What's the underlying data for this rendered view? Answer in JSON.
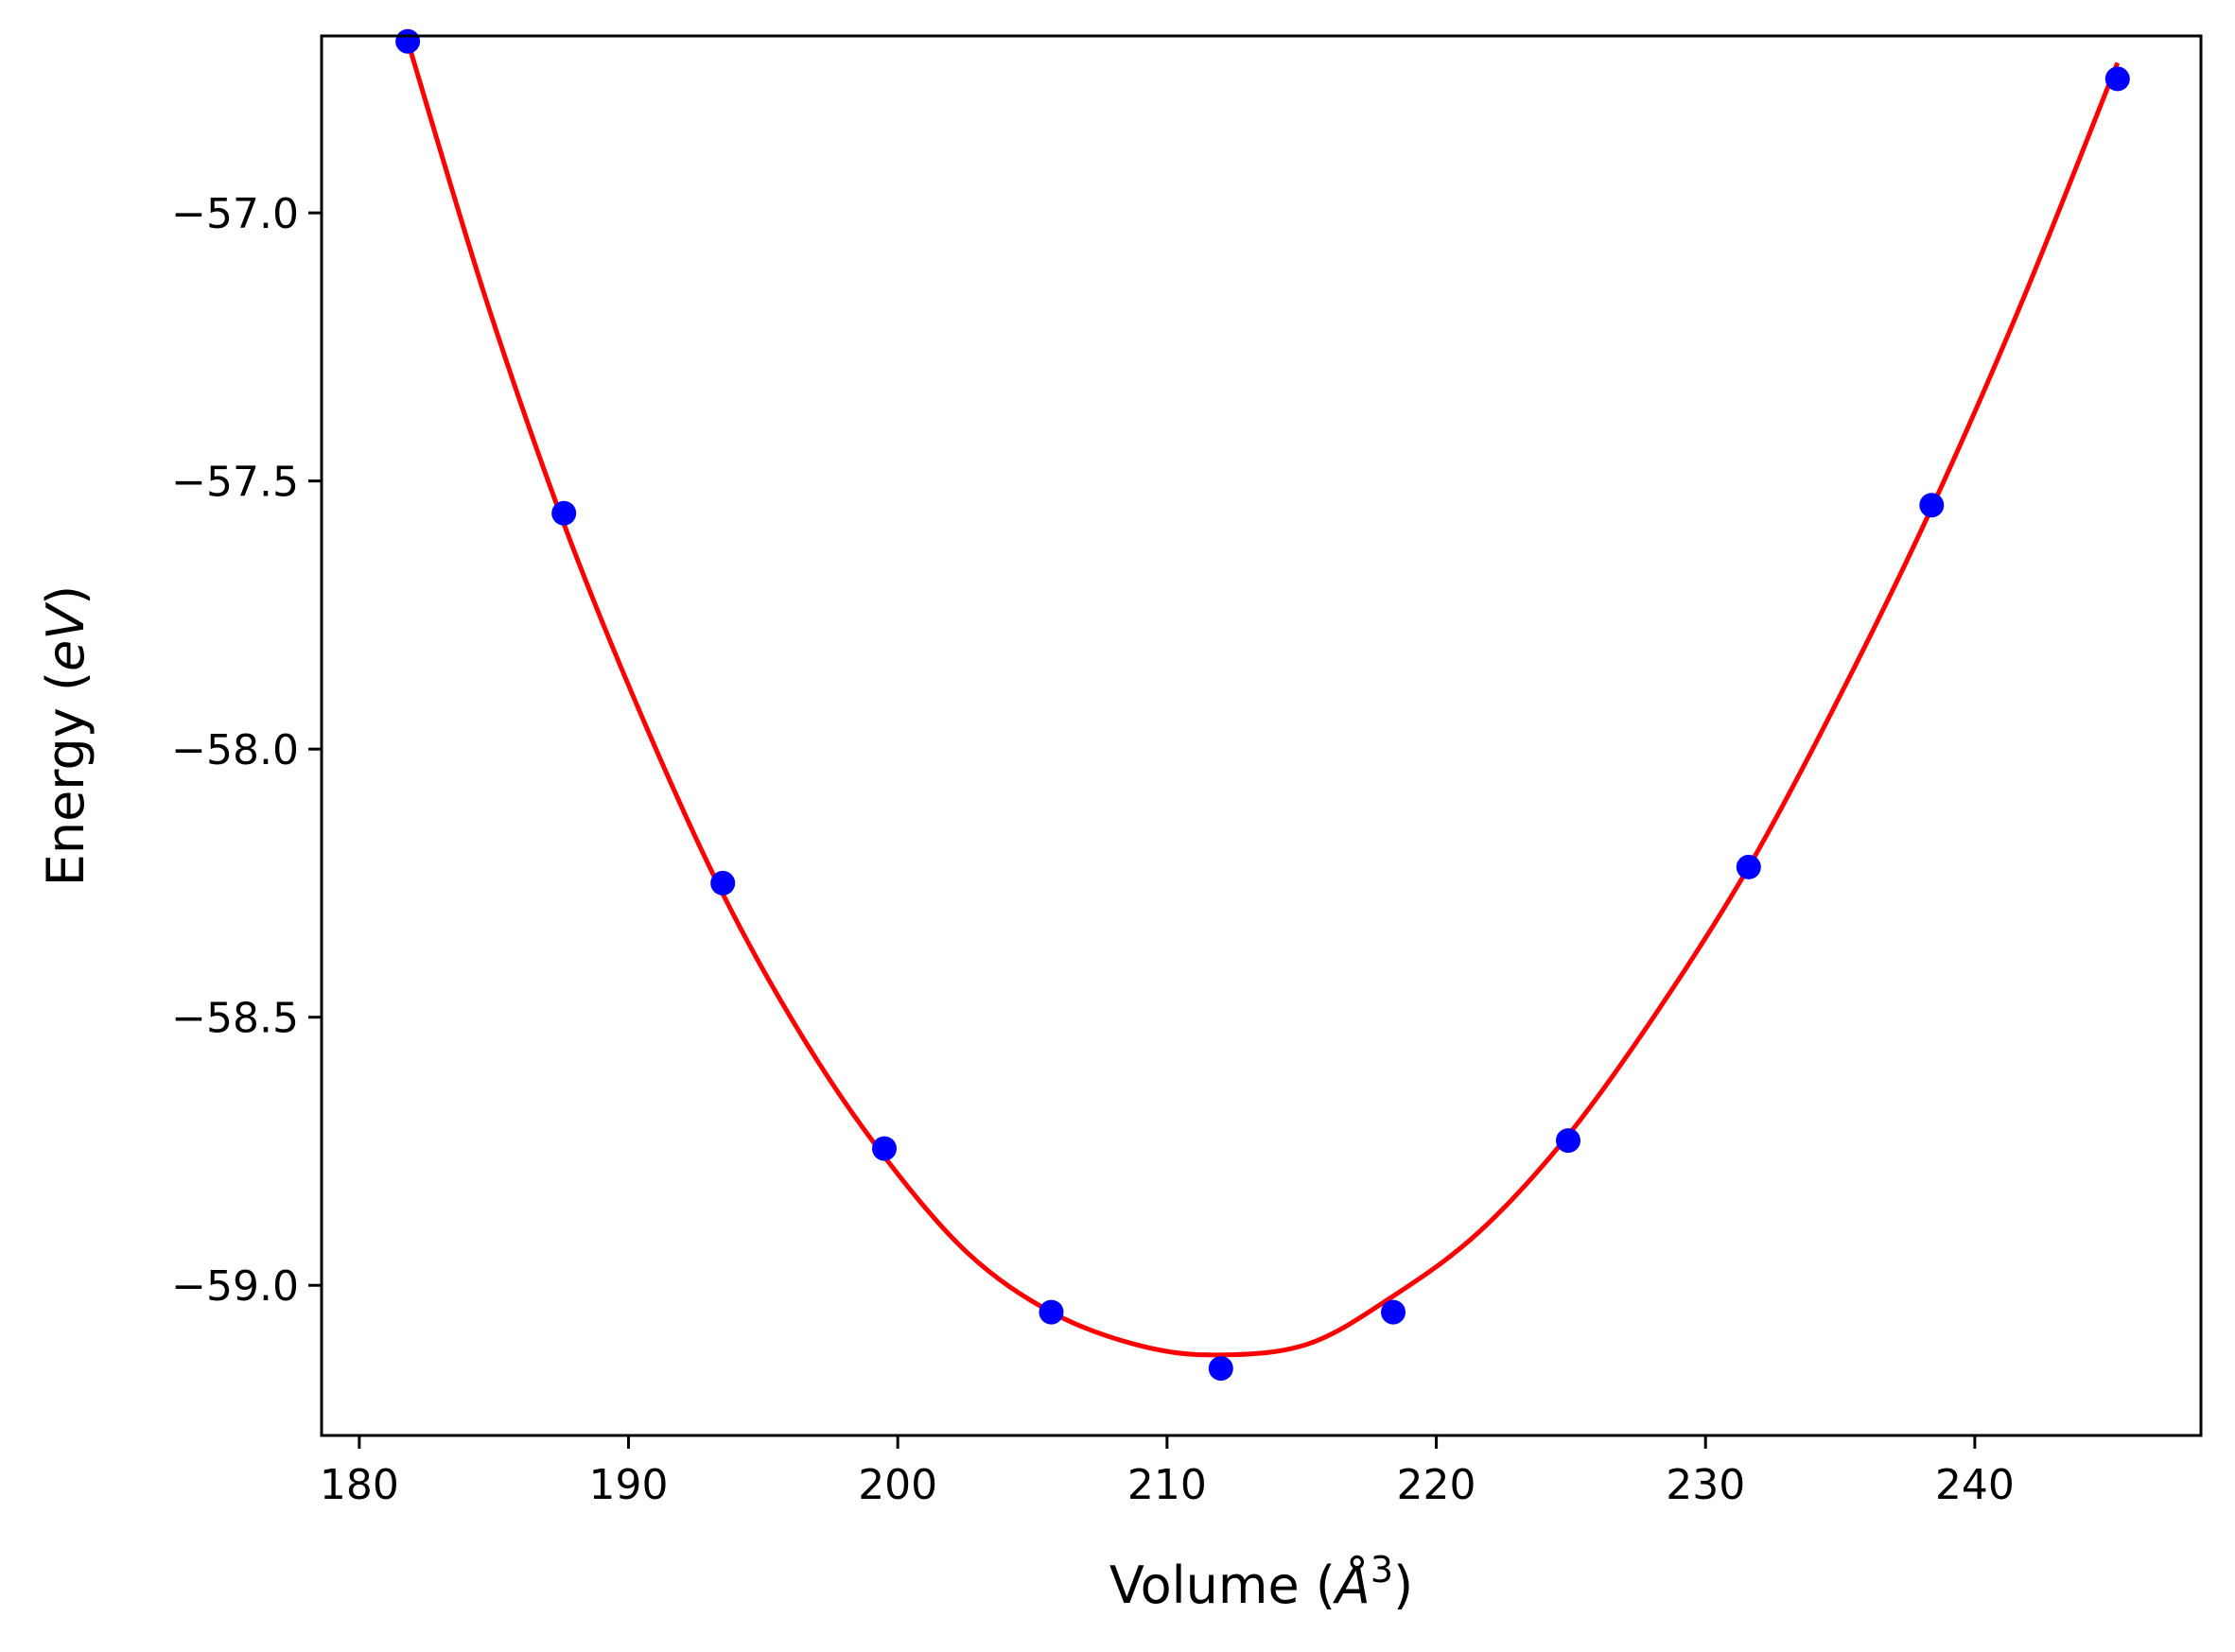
{
  "chart_data": {
    "type": "scatter",
    "xlabel": {
      "main": "Volume (",
      "symbol": "Å",
      "exp": "3",
      "close": ")"
    },
    "ylabel": {
      "main": "Energy (",
      "unit": "eV",
      "close": ")"
    },
    "xlim": [
      178.6,
      248.4
    ],
    "ylim": [
      -59.28,
      -56.67
    ],
    "xticks": [
      180,
      190,
      200,
      210,
      220,
      230,
      240
    ],
    "xtick_labels": [
      "180",
      "190",
      "200",
      "210",
      "220",
      "230",
      "240"
    ],
    "yticks": [
      -57.0,
      -57.5,
      -58.0,
      -58.5,
      -59.0
    ],
    "ytick_labels": [
      "−57.0",
      "−57.5",
      "−58.0",
      "−58.5",
      "−59.0"
    ],
    "grid": false,
    "series": [
      {
        "kind": "points",
        "color": "#0000ff",
        "x": [
          181.8,
          187.6,
          193.5,
          199.5,
          205.7,
          212.0,
          218.4,
          224.9,
          231.6,
          238.4,
          245.3
        ],
        "y": [
          -56.68,
          -57.56,
          -58.25,
          -58.745,
          -59.05,
          -59.155,
          -59.05,
          -58.73,
          -58.22,
          -57.545,
          -56.75
        ]
      },
      {
        "kind": "fit-curve",
        "color": "#ff0000",
        "x": [
          181.8,
          184.7,
          187.6,
          190.5,
          193.5,
          196.5,
          199.5,
          202.6,
          205.7,
          208.8,
          211.7,
          215.2,
          218.4,
          221.6,
          224.9,
          228.2,
          231.6,
          235.0,
          238.4,
          241.8,
          245.3
        ],
        "y": [
          -56.68,
          -57.16,
          -57.58,
          -57.94,
          -58.27,
          -58.54,
          -58.76,
          -58.94,
          -59.05,
          -59.11,
          -59.13,
          -59.11,
          -59.02,
          -58.9,
          -58.72,
          -58.49,
          -58.22,
          -57.9,
          -57.55,
          -57.16,
          -56.72
        ]
      }
    ]
  }
}
